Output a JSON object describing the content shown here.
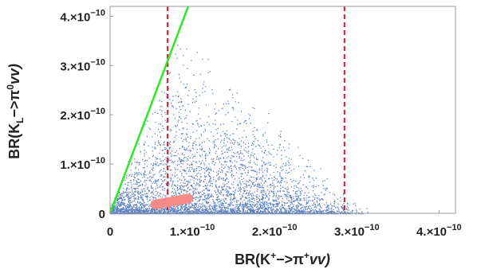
{
  "chart_data": {
    "type": "scatter",
    "title": "",
    "xlabel": "BR(K⁺→π⁺νν)",
    "ylabel": "BR(K_L→π⁰νν)",
    "xlabel_parts": {
      "pre": "BR(K",
      "sup1": "+",
      "mid": "−>π",
      "sup2": "+",
      "post": "vv)"
    },
    "ylabel_parts": {
      "pre": "BR(K",
      "sub": "L",
      "mid": "−>π",
      "sup": "0",
      "post": "vv)"
    },
    "xlim": [
      0,
      4.2e-10
    ],
    "ylim": [
      0,
      4.2e-10
    ],
    "grid": false,
    "x_ticks": [
      {
        "value": 0,
        "label": "0"
      },
      {
        "value": 1e-10,
        "mantissa": "1.",
        "base": "×10",
        "exp": "−10"
      },
      {
        "value": 2e-10,
        "mantissa": "2.",
        "base": "×10",
        "exp": "−10"
      },
      {
        "value": 3e-10,
        "mantissa": "3.",
        "base": "×10",
        "exp": "−10"
      },
      {
        "value": 4e-10,
        "mantissa": "4.",
        "base": "×10",
        "exp": "−10"
      }
    ],
    "y_ticks": [
      {
        "value": 0,
        "label": "0"
      },
      {
        "value": 1e-10,
        "mantissa": "1.",
        "base": "×10",
        "exp": "−10"
      },
      {
        "value": 2e-10,
        "mantissa": "2.",
        "base": "×10",
        "exp": "−10"
      },
      {
        "value": 3e-10,
        "mantissa": "3.",
        "base": "×10",
        "exp": "−10"
      },
      {
        "value": 4e-10,
        "mantissa": "4.",
        "base": "×10",
        "exp": "−10"
      }
    ],
    "scatter_region": {
      "description_free_params": true,
      "x_peak": 8.5e-11,
      "x_max": 3.15e-10,
      "y_max": 3.9e-10,
      "color": "#5b7fbf"
    },
    "reference_lines": [
      {
        "kind": "vertical",
        "x": 7e-11,
        "color": "#e0151f",
        "style": "dashed"
      },
      {
        "kind": "vertical",
        "x": 2.85e-10,
        "color": "#e0151f",
        "style": "dashed"
      },
      {
        "kind": "line",
        "from": [
          0,
          0
        ],
        "to": [
          9.5e-11,
          4.2e-10
        ],
        "color": "#2ee822",
        "style": "solid"
      }
    ],
    "highlight_band": {
      "from": [
        5.5e-11,
        1.8e-11
      ],
      "to": [
        9.5e-11,
        3e-11
      ],
      "color": "#f58a86"
    }
  }
}
